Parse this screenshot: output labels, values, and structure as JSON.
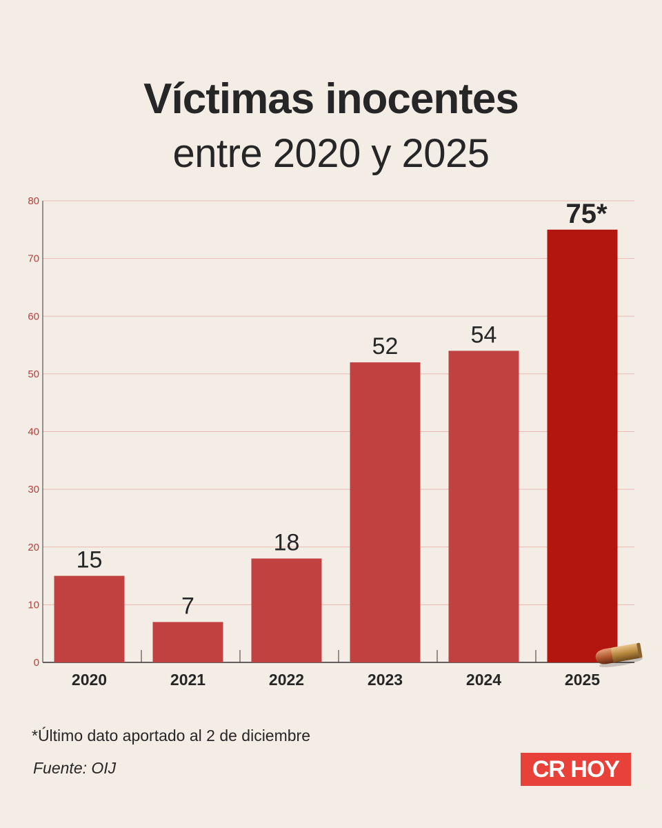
{
  "header": {
    "title": "Víctimas inocentes",
    "subtitle": "entre 2020 y 2025"
  },
  "chart_data": {
    "type": "bar",
    "title": "Víctimas inocentes",
    "subtitle": "entre 2020 y 2025",
    "categories": [
      "2020",
      "2021",
      "2022",
      "2023",
      "2024",
      "2025"
    ],
    "values": [
      15,
      7,
      18,
      52,
      54,
      75
    ],
    "value_labels": [
      "15",
      "7",
      "18",
      "52",
      "54",
      "75*"
    ],
    "highlight_index": 5,
    "ylim": [
      0,
      80
    ],
    "yticks": [
      0,
      10,
      20,
      30,
      40,
      50,
      60,
      70,
      80
    ],
    "grid": true,
    "colors": {
      "bar": "#c04140",
      "highlight_bar": "#b3150f",
      "grid": "#e8b9b2",
      "tick_label": "#b8403c"
    }
  },
  "footer": {
    "footnote": "*Último dato aportado al 2 de diciembre",
    "source": "Fuente: OIJ",
    "logo_text": "CR HOY"
  }
}
